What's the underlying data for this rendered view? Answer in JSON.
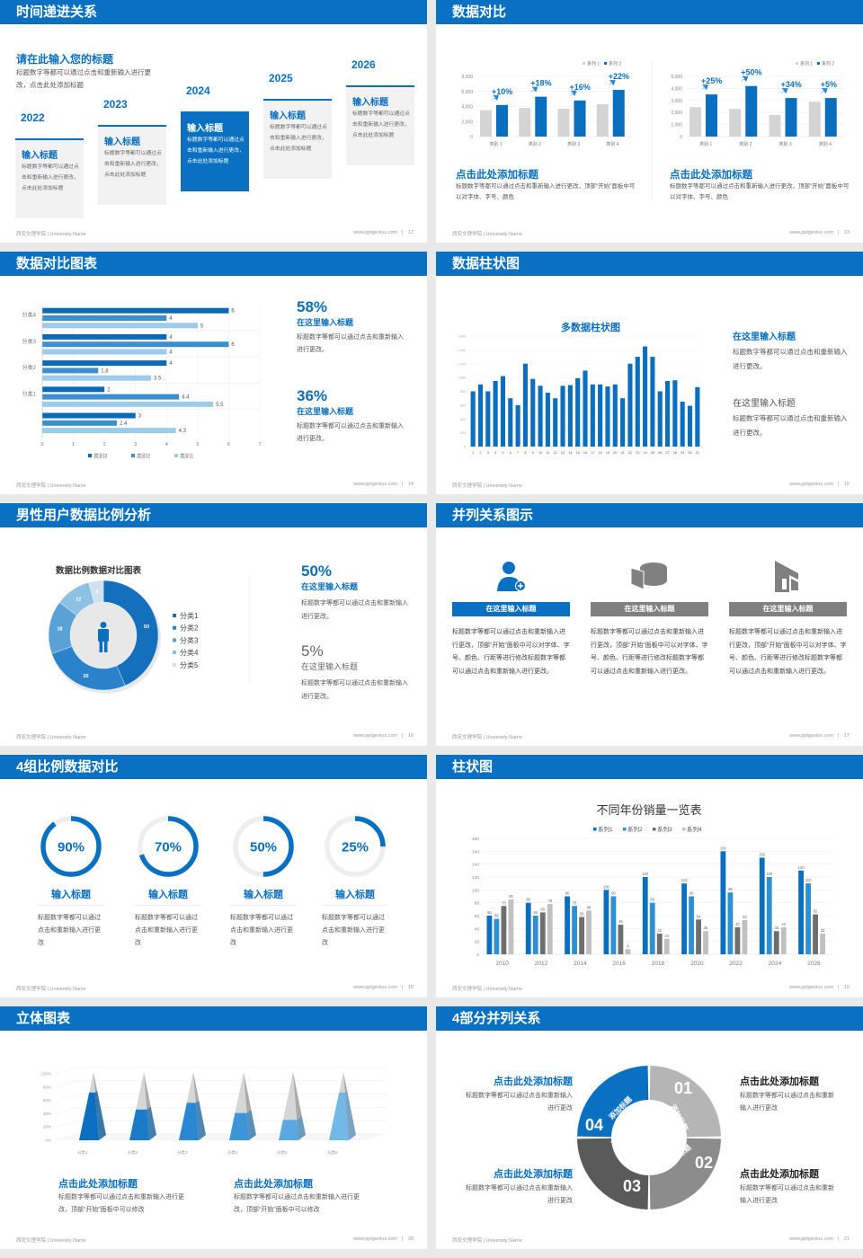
{
  "footer": {
    "left": "西安文理学院 | University Name",
    "url": "www.pptgenius.com"
  },
  "colors": {
    "brand": "#0a70c1",
    "light_gray_bar": "#d4d4d4",
    "panel_gray": "#f2f2f2",
    "dark_gray": "#5a5a5a",
    "mid_gray": "#8c8c8c",
    "light_gray": "#b5b5b5"
  },
  "slides": [
    {
      "title": "时间递进关系",
      "page": "12",
      "heading": "请在此输入您的标题",
      "desc": "标题数字等都可以通过点击和重新输入进行更改，点击此处添加标题",
      "items": [
        {
          "year": "2022",
          "title": "输入标题",
          "text": "标题数字等都可以通过点击和重新输入进行更改，点击此处添加标题",
          "active": false
        },
        {
          "year": "2023",
          "title": "输入标题",
          "text": "标题数字等都可以通过点击和重新输入进行更改，点击此处添加标题",
          "active": false
        },
        {
          "year": "2024",
          "title": "输入标题",
          "text": "标题数字等都可以通过点击和重新输入进行更改，点击此处添加标题",
          "active": true
        },
        {
          "year": "2025",
          "title": "输入标题",
          "text": "标题数字等都可以通过点击和重新输入进行更改，点击此处添加标题",
          "active": false
        },
        {
          "year": "2026",
          "title": "输入标题",
          "text": "标题数字等都可以通过点击和重新输入进行更改，点击此处添加标题",
          "active": false
        }
      ]
    },
    {
      "title": "数据对比",
      "page": "13",
      "blocks": [
        {
          "heading": "点击此处添加标题",
          "desc": "标题数字等都可以通过点击和重新输入进行更改，顶部“开始”面板中可以对字体、字号、颜色"
        },
        {
          "heading": "点击此处添加标题",
          "desc": "标题数字等都可以通过点击和重新输入进行更改，顶部“开始”面板中可以对字体、字号、颜色"
        }
      ]
    },
    {
      "title": "数据对比图表",
      "page": "14",
      "stats": [
        {
          "value": "58%",
          "label": "在这里输入标题",
          "desc": "标题数字等都可以通过点击和重新输入进行更改。"
        },
        {
          "value": "36%",
          "label": "在这里输入标题",
          "desc": "标题数字等都可以通过点击和重新输入进行更改。"
        }
      ]
    },
    {
      "title": "数据柱状图",
      "page": "15",
      "stats": [
        {
          "label": "在这里输入标题",
          "desc": "标题数字等都可以通过点击和重新输入进行更改。"
        },
        {
          "label": "在这里输入标题",
          "desc": "标题数字等都可以通过点击和重新输入进行更改。"
        }
      ]
    },
    {
      "title": "男性用户数据比例分析",
      "page": "16",
      "stats": [
        {
          "value": "50%",
          "label": "在这里输入标题",
          "desc": "标题数字等都可以通过点击和重新输入进行更改。"
        },
        {
          "value": "5%",
          "label": "在这里输入标题",
          "desc": "标题数字等都可以通过点击和重新输入进行更改。"
        }
      ]
    },
    {
      "title": "并列关系图示",
      "page": "17",
      "columns": [
        {
          "icon": "user-add-icon",
          "label": "在这里输入标题",
          "desc": "标题数字等都可以通过点击和重新输入进行更改，顶部“开始”面板中可以对字体、字号、颜色、行距等进行修改标题数字等都可以通过点击和重新输入进行更改。",
          "highlight": true
        },
        {
          "icon": "pie-chart-icon",
          "label": "在这里输入标题",
          "desc": "标题数字等都可以通过点击和重新输入进行更改，顶部“开始”面板中可以对字体、字号、颜色、行距等进行修改标题数字等都可以通过点击和重新输入进行更改。",
          "highlight": false
        },
        {
          "icon": "building-icon",
          "label": "在这里输入标题",
          "desc": "标题数字等都可以通过点击和重新输入进行更改，顶部“开始”面板中可以对字体、字号、颜色、行距等进行修改标题数字等都可以通过点击和重新输入进行更改。",
          "highlight": false
        }
      ]
    },
    {
      "title": "4组比例数据对比",
      "page": "18",
      "rings": [
        {
          "percent": 90,
          "value": "90%",
          "label": "输入标题",
          "desc": "标题数字等都可以通过点击和重新输入进行更改"
        },
        {
          "percent": 70,
          "value": "70%",
          "label": "输入标题",
          "desc": "标题数字等都可以通过点击和重新输入进行更改"
        },
        {
          "percent": 50,
          "value": "50%",
          "label": "输入标题",
          "desc": "标题数字等都可以通过点击和重新输入进行更改"
        },
        {
          "percent": 25,
          "value": "25%",
          "label": "输入标题",
          "desc": "标题数字等都可以通过点击和重新输入进行更改"
        }
      ]
    },
    {
      "title": "柱状图",
      "page": "19"
    },
    {
      "title": "立体图表",
      "page": "20",
      "blocks": [
        {
          "heading": "点击此处添加标题",
          "desc": "标题数字等都可以通过点击和重新输入进行更改，顶部“开始”面板中可以修改"
        },
        {
          "heading": "点击此处添加标题",
          "desc": "标题数字等都可以通过点击和重新输入进行更改，顶部“开始”面板中可以修改"
        }
      ]
    },
    {
      "title": "4部分并列关系",
      "page": "21",
      "segments": [
        {
          "number": "01",
          "label": "添加标题"
        },
        {
          "number": "02",
          "label": "添加标题"
        },
        {
          "number": "03",
          "label": "添加标题"
        },
        {
          "number": "04",
          "label": "添加标题"
        }
      ],
      "blocks": [
        {
          "heading": "点击此处添加标题",
          "desc": "标题数字等都可以通过点击和重新输入进行更改"
        },
        {
          "heading": "点击此处添加标题",
          "desc": "标题数字等都可以通过点击和重新输入进行更改"
        },
        {
          "heading": "点击此处添加标题",
          "desc": "标题数字等都可以通过点击和重新输入进行更改"
        },
        {
          "heading": "点击此处添加标题",
          "desc": "标题数字等都可以通过点击和重新输入进行更改"
        }
      ]
    }
  ],
  "chart_data": [
    {
      "type": "bar",
      "categories": [
        "类别 1",
        "类别 2",
        "类别 3",
        "类别 4"
      ],
      "series": [
        {
          "name": "系列 1",
          "values": [
            3500,
            3800,
            3700,
            4300
          ],
          "color": "#d4d4d4"
        },
        {
          "name": "系列 2",
          "values": [
            4200,
            5300,
            4800,
            6200
          ],
          "color": "#0a6fbf"
        }
      ],
      "annotations": [
        "+10%",
        "+18%",
        "+16%",
        "+22%"
      ],
      "ylim": [
        0,
        8000
      ],
      "yticks": [
        0,
        2000,
        4000,
        6000,
        8000
      ],
      "ytick_labels": [
        "0",
        "2,000",
        "4,000",
        "6,000",
        "8,000"
      ],
      "legend": "top-right",
      "grid": true
    },
    {
      "type": "bar",
      "categories": [
        "类别 1",
        "类别 2",
        "类别 3",
        "类别 4"
      ],
      "series": [
        {
          "name": "系列 1",
          "values": [
            2450,
            2300,
            1800,
            2900
          ],
          "color": "#d4d4d4"
        },
        {
          "name": "系列 2",
          "values": [
            3500,
            4200,
            3200,
            3200
          ],
          "color": "#0a6fbf"
        }
      ],
      "annotations": [
        "+25%",
        "+50%",
        "+34%",
        "+5%"
      ],
      "ylim": [
        0,
        5000
      ],
      "yticks": [
        0,
        1000,
        2000,
        3000,
        4000,
        5000
      ],
      "ytick_labels": [
        "0",
        "1,000",
        "2,000",
        "3,000",
        "4,000",
        "5,000"
      ],
      "legend": "top-right",
      "grid": true
    },
    {
      "type": "bar",
      "orientation": "horizontal",
      "categories": [
        "分类4",
        "分类3",
        "分类2",
        "分类1",
        ""
      ],
      "series": [
        {
          "name": "类别3",
          "values": [
            6,
            4,
            4,
            2,
            3
          ],
          "color": "#0a6ab8"
        },
        {
          "name": "类别2",
          "values": [
            4,
            6,
            1.8,
            4.4,
            2.4
          ],
          "color": "#3b8fd0"
        },
        {
          "name": "类别1",
          "values": [
            5,
            4,
            3.5,
            5.5,
            4.3
          ],
          "color": "#9ccbec"
        }
      ],
      "xlim": [
        0,
        7
      ],
      "xticks": [
        "0",
        "1",
        "2",
        "3",
        "4",
        "5",
        "6",
        "7"
      ],
      "legend": "bottom",
      "data_labels": true,
      "grid": true
    },
    {
      "type": "bar",
      "title": "多数据柱状图",
      "categories": [
        "1",
        "2",
        "3",
        "4",
        "5",
        "6",
        "7",
        "8",
        "9",
        "10",
        "11",
        "12",
        "13",
        "14",
        "15",
        "16",
        "17",
        "18",
        "19",
        "20",
        "21",
        "22",
        "23",
        "24",
        "25",
        "26",
        "27",
        "28",
        "29",
        "30",
        "31"
      ],
      "values": [
        800,
        900,
        800,
        950,
        1020,
        700,
        600,
        1200,
        980,
        880,
        780,
        700,
        880,
        890,
        990,
        1100,
        900,
        900,
        870,
        900,
        700,
        1200,
        1300,
        1450,
        1300,
        800,
        950,
        960,
        650,
        590,
        860
      ],
      "color": "#0a6fbf",
      "ylim": [
        0,
        1600
      ],
      "yticks": [
        0,
        200,
        400,
        600,
        800,
        1000,
        1200,
        1400,
        1600
      ],
      "ytick_labels": [
        "0",
        "200",
        "400",
        "600",
        "800",
        "1,000",
        "1,200",
        "1,400",
        "1,600"
      ]
    },
    {
      "type": "pie",
      "variant": "donut",
      "title": "数据比例数据对比图表",
      "categories": [
        "分类1",
        "分类2",
        "分类3",
        "分类4",
        "分类5"
      ],
      "values": [
        50,
        30,
        18,
        12,
        5
      ],
      "colors": [
        "#1470bd",
        "#2a82ca",
        "#5aa2d6",
        "#8dc0e3",
        "#cfe2f0"
      ],
      "legend": "right"
    },
    {
      "type": "bar",
      "title": "不同年份销量一览表",
      "categories": [
        "2010",
        "2012",
        "2014",
        "2016",
        "2018",
        "2020",
        "2022",
        "2024",
        "2026"
      ],
      "series": [
        {
          "name": "系列1",
          "values": [
            60,
            80,
            90,
            100,
            120,
            110,
            160,
            150,
            130
          ],
          "color": "#0a6fbf"
        },
        {
          "name": "系列2",
          "values": [
            55,
            60,
            75,
            90,
            80,
            90,
            96,
            120,
            110
          ],
          "color": "#2f8fd3"
        },
        {
          "name": "系列3",
          "values": [
            75,
            65,
            58,
            46,
            32,
            54,
            42,
            36,
            62
          ],
          "color": "#6e6e6e"
        },
        {
          "name": "系列4",
          "values": [
            85,
            78,
            68,
            8,
            24,
            36,
            53,
            42,
            32
          ],
          "color": "#c0c0c0"
        }
      ],
      "ylim": [
        0,
        180
      ],
      "yticks": [
        0,
        20,
        40,
        60,
        80,
        100,
        120,
        140,
        160,
        180
      ],
      "ytick_labels": [
        "0",
        "20",
        "40",
        "60",
        "80",
        "100",
        "120",
        "140",
        "160",
        "180"
      ],
      "legend": "top",
      "data_labels": true
    },
    {
      "type": "bar",
      "variant": "3d-pyramid",
      "categories": [
        "分类1",
        "分类2",
        "分类3",
        "分类4",
        "分类5",
        "分类6"
      ],
      "values": [
        70,
        45,
        55,
        40,
        30,
        70
      ],
      "colors": [
        "#0a6fc0",
        "#1a7bc9",
        "#2a88d2",
        "#3d95d8",
        "#5aa8e0",
        "#73b7e7"
      ],
      "ylim": [
        0,
        100
      ],
      "ytick_labels": [
        "0%",
        "20%",
        "40%",
        "60%",
        "80%",
        "100%"
      ]
    }
  ]
}
